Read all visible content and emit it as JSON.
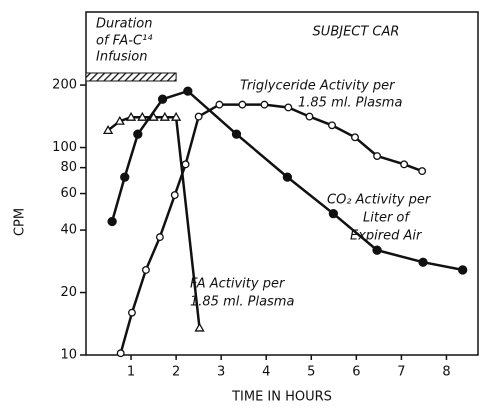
{
  "chart_data": {
    "type": "line",
    "title": "SUBJECT CAR",
    "xlabel": "TIME IN HOURS",
    "ylabel": "CPM",
    "ylog": true,
    "xlim": [
      0,
      8.7
    ],
    "ylim": [
      10,
      450
    ],
    "xticks": [
      1,
      2,
      3,
      4,
      5,
      6,
      7,
      8
    ],
    "yticks": [
      10,
      20,
      40,
      60,
      80,
      100,
      200
    ],
    "infusion": {
      "lines": [
        "Duration",
        "of FA-C¹⁴",
        "Infusion"
      ],
      "x": [
        0,
        2.0
      ]
    },
    "series": [
      {
        "name": "FA Activity per 1.85 ml. Plasma",
        "label_lines": [
          "FA Activity per",
          "1.85 ml. Plasma"
        ],
        "marker": "triangle",
        "color": "#111",
        "x": [
          0.49,
          0.75,
          1.0,
          1.25,
          1.5,
          1.75,
          2.0,
          2.52
        ],
        "values": [
          121,
          134,
          140,
          140,
          140,
          140,
          140,
          13.5
        ]
      },
      {
        "name": "CO₂ Activity per Liter of Expired Air",
        "label_lines": [
          "CO₂ Activity per",
          "Liter of",
          "Expired Air"
        ],
        "marker": "filled-circle",
        "color": "#111",
        "x": [
          0.58,
          0.86,
          1.15,
          1.7,
          2.26,
          3.34,
          4.47,
          5.49,
          6.46,
          7.48,
          8.36
        ],
        "values": [
          44,
          72,
          116,
          171,
          187,
          116,
          72,
          48,
          32,
          28,
          25.7
        ]
      },
      {
        "name": "Triglyceride Activity per 1.85 ml. Plasma",
        "label_lines": [
          "Triglyceride Activity per",
          "1.85 ml. Plasma"
        ],
        "marker": "open-circle",
        "color": "#111",
        "x": [
          0.77,
          1.02,
          1.33,
          1.64,
          1.97,
          2.21,
          2.5,
          2.96,
          3.47,
          3.96,
          4.49,
          4.96,
          5.46,
          5.97,
          6.46,
          7.06,
          7.46
        ],
        "values": [
          10.2,
          16,
          25.7,
          37,
          59,
          83,
          141,
          161,
          161,
          161,
          156,
          141,
          128,
          112,
          91,
          83,
          77
        ]
      }
    ]
  }
}
